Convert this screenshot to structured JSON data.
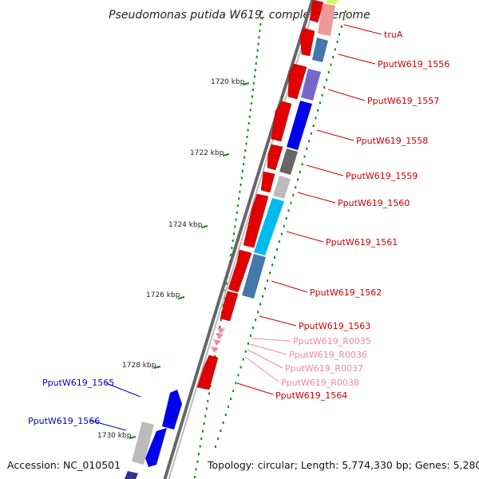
{
  "title": "Pseudomonas putida W619, complete genome",
  "footer": {
    "accession": "Accession: NC_010501",
    "topology": "Topology: circular; Length: 5,774,330 bp; Genes: 5,280"
  },
  "scale_labels": [
    "1720 kbp",
    "1722 kbp",
    "1724 kbp",
    "1726 kbp",
    "1728 kbp",
    "1730 kbp"
  ],
  "colors": {
    "forward_label": "#cc0000",
    "reverse_label": "#0000cc",
    "rna_label": "#ee88aa",
    "backbone": "#777777",
    "tick": "#118811"
  },
  "gene_labels": [
    {
      "text": "truA",
      "strand": "forward"
    },
    {
      "text": "PputW619_1556",
      "strand": "forward"
    },
    {
      "text": "PputW619_1557",
      "strand": "forward"
    },
    {
      "text": "PputW619_1558",
      "strand": "forward"
    },
    {
      "text": "PputW619_1559",
      "strand": "forward"
    },
    {
      "text": "PputW619_1560",
      "strand": "forward"
    },
    {
      "text": "PputW619_1561",
      "strand": "forward"
    },
    {
      "text": "PputW619_1562",
      "strand": "forward"
    },
    {
      "text": "PputW619_1563",
      "strand": "forward"
    },
    {
      "text": "PputW619_R0035",
      "strand": "rna"
    },
    {
      "text": "PputW619_R0036",
      "strand": "rna"
    },
    {
      "text": "PputW619_R0037",
      "strand": "rna"
    },
    {
      "text": "PputW619_R0038",
      "strand": "rna"
    },
    {
      "text": "PputW619_1564",
      "strand": "forward"
    },
    {
      "text": "PputW619_1565",
      "strand": "reverse"
    },
    {
      "text": "PputW619_1566",
      "strand": "reverse"
    }
  ]
}
